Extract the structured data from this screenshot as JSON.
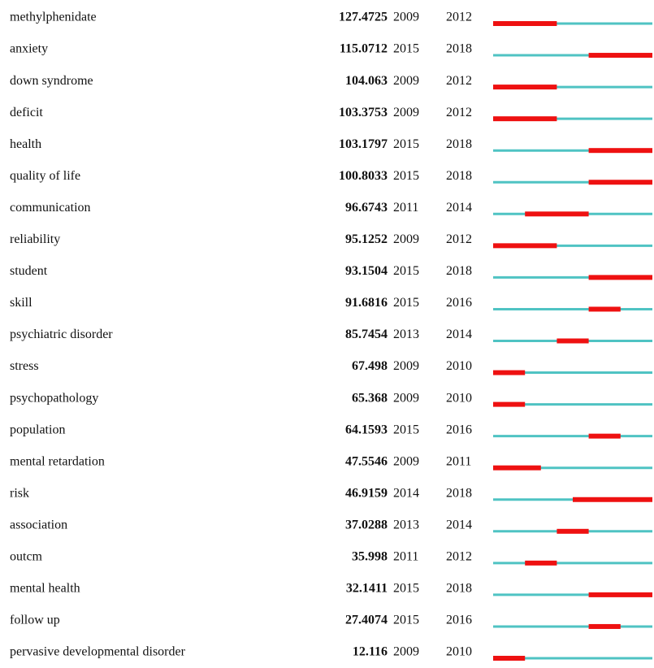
{
  "table": {
    "rows": [
      [
        "methylphenidate",
        127.4725,
        2009,
        2012
      ],
      [
        "anxiety",
        115.0712,
        2015,
        2018
      ],
      [
        "down syndrome",
        104.063,
        2009,
        2012
      ],
      [
        "deficit",
        103.3753,
        2009,
        2012
      ],
      [
        "health",
        103.1797,
        2015,
        2018
      ],
      [
        "quality of life",
        100.8033,
        2015,
        2018
      ],
      [
        "communication",
        96.6743,
        2011,
        2014
      ],
      [
        "reliability",
        95.1252,
        2009,
        2012
      ],
      [
        "student",
        93.1504,
        2015,
        2018
      ],
      [
        "skill",
        91.6816,
        2015,
        2016
      ],
      [
        "psychiatric disorder",
        85.7454,
        2013,
        2014
      ],
      [
        "stress",
        67.498,
        2009,
        2010
      ],
      [
        "psychopathology",
        65.368,
        2009,
        2010
      ],
      [
        "population",
        64.1593,
        2015,
        2016
      ],
      [
        "mental retardation",
        47.5546,
        2009,
        2011
      ],
      [
        "risk",
        46.9159,
        2014,
        2018
      ],
      [
        "association",
        37.0288,
        2013,
        2014
      ],
      [
        "outcm",
        35.998,
        2011,
        2012
      ],
      [
        "mental health",
        32.1411,
        2015,
        2018
      ],
      [
        "follow up",
        27.4074,
        2015,
        2016
      ],
      [
        "pervasive developmental disorder",
        12.116,
        2009,
        2010
      ]
    ]
  }
}
